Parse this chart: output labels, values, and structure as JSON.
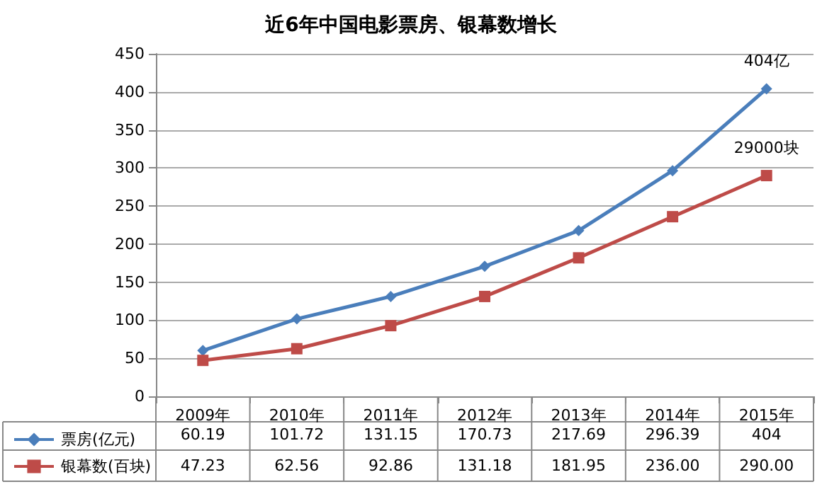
{
  "chart_data": {
    "type": "line",
    "title": "近6年中国电影票房、银幕数增长",
    "categories": [
      "2009年",
      "2010年",
      "2011年",
      "2012年",
      "2013年",
      "2014年",
      "2015年"
    ],
    "series": [
      {
        "name": "票房(亿元)",
        "color": "#4a7ebb",
        "marker": "diamond",
        "values": [
          60.19,
          101.72,
          131.15,
          170.73,
          217.69,
          296.39,
          404
        ],
        "value_labels": [
          "60.19",
          "101.72",
          "131.15",
          "170.73",
          "217.69",
          "296.39",
          "404"
        ]
      },
      {
        "name": "银幕数(百块)",
        "color": "#be4b48",
        "marker": "square",
        "values": [
          47.23,
          62.56,
          92.86,
          131.18,
          181.95,
          236.0,
          290.0
        ],
        "value_labels": [
          "47.23",
          "62.56",
          "92.86",
          "131.18",
          "181.95",
          "236.00",
          "290.00"
        ]
      }
    ],
    "annotations": [
      {
        "text": "404亿",
        "x": "2015年",
        "y": 404
      },
      {
        "text": "29000块",
        "x": "2015年",
        "y": 290
      }
    ],
    "ylim": [
      0,
      450
    ],
    "yticks": [
      0,
      50,
      100,
      150,
      200,
      250,
      300,
      350,
      400,
      450
    ],
    "grid": "y",
    "legend": "bottom left"
  }
}
